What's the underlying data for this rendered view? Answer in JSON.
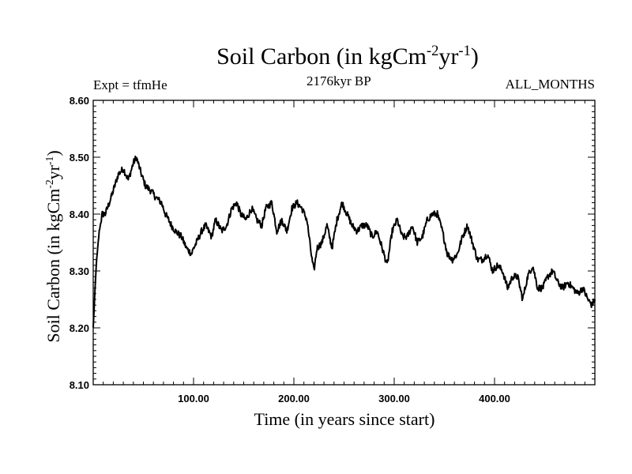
{
  "chart_data": {
    "type": "line",
    "title": "Soil Carbon (in kgCm",
    "title_sup1": "-2",
    "title_mid": "yr",
    "title_sup2": "-1",
    "title_end": ")",
    "expt_label": "Expt = tfmHe",
    "period_label": "2176kyr BP",
    "months_label": "ALL_MONTHS",
    "xlabel": "Time (in years since start)",
    "ylabel": "Soil Carbon (in kgCm",
    "ylabel_sup1": "-2",
    "ylabel_mid": "yr",
    "ylabel_sup2": "-1",
    "ylabel_end": ")",
    "xlim": [
      0,
      500
    ],
    "ylim": [
      8.1,
      8.6
    ],
    "xticks": [
      100,
      200,
      300,
      400
    ],
    "xtick_labels": [
      "100.00",
      "200.00",
      "300.00",
      "400.00"
    ],
    "yticks": [
      8.1,
      8.2,
      8.3,
      8.4,
      8.5,
      8.6
    ],
    "ytick_labels": [
      "8.10",
      "8.20",
      "8.30",
      "8.40",
      "8.50",
      "8.60"
    ],
    "series": [
      {
        "name": "Soil Carbon",
        "x": [
          0,
          3,
          6,
          9,
          12,
          18,
          25,
          30,
          35,
          40,
          43,
          48,
          52,
          58,
          62,
          68,
          72,
          78,
          82,
          88,
          93,
          98,
          100,
          103,
          108,
          112,
          118,
          122,
          128,
          133,
          138,
          143,
          147,
          152,
          158,
          163,
          168,
          172,
          178,
          183,
          188,
          193,
          198,
          203,
          208,
          213,
          218,
          220,
          223,
          228,
          233,
          238,
          243,
          248,
          253,
          258,
          263,
          268,
          273,
          278,
          283,
          288,
          293,
          298,
          303,
          308,
          313,
          318,
          323,
          328,
          333,
          338,
          343,
          348,
          353,
          358,
          363,
          368,
          373,
          378,
          383,
          388,
          393,
          398,
          403,
          408,
          413,
          418,
          423,
          428,
          433,
          438,
          443,
          448,
          453,
          458,
          463,
          468,
          473,
          478,
          483,
          488,
          493,
          497,
          500
        ],
        "y": [
          8.2,
          8.31,
          8.37,
          8.4,
          8.4,
          8.43,
          8.47,
          8.48,
          8.46,
          8.49,
          8.5,
          8.47,
          8.45,
          8.44,
          8.43,
          8.42,
          8.4,
          8.38,
          8.37,
          8.36,
          8.34,
          8.33,
          8.34,
          8.35,
          8.37,
          8.38,
          8.36,
          8.39,
          8.37,
          8.38,
          8.41,
          8.42,
          8.4,
          8.39,
          8.41,
          8.39,
          8.38,
          8.41,
          8.42,
          8.37,
          8.39,
          8.37,
          8.41,
          8.42,
          8.41,
          8.39,
          8.32,
          8.3,
          8.34,
          8.35,
          8.38,
          8.34,
          8.39,
          8.42,
          8.4,
          8.38,
          8.37,
          8.38,
          8.38,
          8.36,
          8.37,
          8.34,
          8.31,
          8.37,
          8.39,
          8.36,
          8.36,
          8.38,
          8.35,
          8.36,
          8.39,
          8.4,
          8.4,
          8.37,
          8.33,
          8.32,
          8.33,
          8.36,
          8.38,
          8.35,
          8.32,
          8.32,
          8.33,
          8.3,
          8.31,
          8.3,
          8.27,
          8.29,
          8.29,
          8.25,
          8.29,
          8.31,
          8.27,
          8.27,
          8.29,
          8.3,
          8.28,
          8.27,
          8.28,
          8.27,
          8.26,
          8.27,
          8.25,
          8.24,
          8.25
        ]
      }
    ]
  }
}
